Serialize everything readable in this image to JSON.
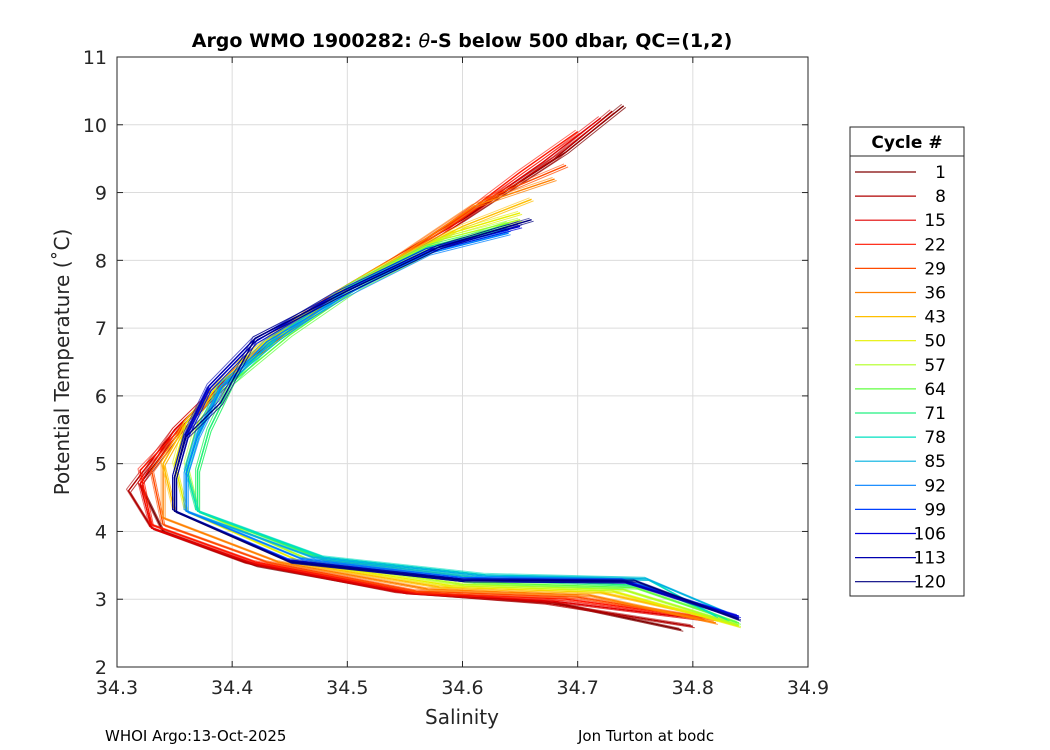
{
  "chart_data": {
    "type": "line",
    "title": "Argo WMO 1900282: θ-S below 500 dbar,  QC=(1,2)",
    "title_prefix": "Argo WMO 1900282: ",
    "title_theta": "θ",
    "title_suffix": "-S below 500 dbar,  QC=(1,2)",
    "xlabel": "Salinity",
    "ylabel": "Potential Temperature (˚C)",
    "xlim": [
      34.3,
      34.9
    ],
    "ylim": [
      2,
      11
    ],
    "x_ticks": [
      "34.3",
      "34.4",
      "34.5",
      "34.6",
      "34.7",
      "34.8",
      "34.9"
    ],
    "y_ticks": [
      "2",
      "3",
      "4",
      "5",
      "6",
      "7",
      "8",
      "9",
      "10",
      "11"
    ],
    "grid": true,
    "legend": {
      "title": "Cycle #",
      "placement": "right-outside",
      "entries": [
        {
          "label": "1",
          "color": "#800000"
        },
        {
          "label": "8",
          "color": "#b00000"
        },
        {
          "label": "15",
          "color": "#e00000"
        },
        {
          "label": "22",
          "color": "#ff1500"
        },
        {
          "label": "29",
          "color": "#ff4a00"
        },
        {
          "label": "36",
          "color": "#ff8000"
        },
        {
          "label": "43",
          "color": "#ffbf00"
        },
        {
          "label": "50",
          "color": "#e6f000"
        },
        {
          "label": "57",
          "color": "#b0ff20"
        },
        {
          "label": "64",
          "color": "#60ff40"
        },
        {
          "label": "71",
          "color": "#20f080"
        },
        {
          "label": "78",
          "color": "#00e0c0"
        },
        {
          "label": "85",
          "color": "#00b0e0"
        },
        {
          "label": "92",
          "color": "#0080ff"
        },
        {
          "label": "99",
          "color": "#0040ff"
        },
        {
          "label": "106",
          "color": "#0000e0"
        },
        {
          "label": "113",
          "color": "#0000b0"
        },
        {
          "label": "120",
          "color": "#000080"
        }
      ]
    },
    "series": [
      {
        "color": "#800000",
        "points": [
          [
            34.74,
            10.28
          ],
          [
            34.69,
            9.6
          ],
          [
            34.6,
            8.6
          ],
          [
            34.5,
            7.6
          ],
          [
            34.42,
            6.6
          ],
          [
            34.36,
            5.6
          ],
          [
            34.32,
            4.7
          ],
          [
            34.34,
            4.0
          ],
          [
            34.42,
            3.5
          ],
          [
            34.55,
            3.1
          ],
          [
            34.68,
            2.95
          ],
          [
            34.79,
            2.55
          ]
        ]
      },
      {
        "color": "#b00000",
        "points": [
          [
            34.73,
            10.2
          ],
          [
            34.68,
            9.5
          ],
          [
            34.59,
            8.5
          ],
          [
            34.49,
            7.5
          ],
          [
            34.41,
            6.5
          ],
          [
            34.35,
            5.5
          ],
          [
            34.31,
            4.6
          ],
          [
            34.33,
            4.05
          ],
          [
            34.41,
            3.55
          ],
          [
            34.54,
            3.12
          ],
          [
            34.67,
            2.95
          ],
          [
            34.8,
            2.6
          ]
        ]
      },
      {
        "color": "#e00000",
        "points": [
          [
            34.72,
            10.1
          ],
          [
            34.67,
            9.45
          ],
          [
            34.59,
            8.5
          ],
          [
            34.49,
            7.5
          ],
          [
            34.41,
            6.5
          ],
          [
            34.35,
            5.5
          ],
          [
            34.32,
            4.7
          ],
          [
            34.33,
            4.05
          ],
          [
            34.42,
            3.52
          ],
          [
            34.55,
            3.1
          ],
          [
            34.68,
            2.97
          ],
          [
            34.81,
            2.7
          ]
        ]
      },
      {
        "color": "#ff1500",
        "points": [
          [
            34.7,
            9.9
          ],
          [
            34.65,
            9.3
          ],
          [
            34.58,
            8.4
          ],
          [
            34.49,
            7.5
          ],
          [
            34.41,
            6.5
          ],
          [
            34.36,
            5.6
          ],
          [
            34.32,
            4.9
          ],
          [
            34.33,
            4.1
          ],
          [
            34.42,
            3.55
          ],
          [
            34.56,
            3.1
          ],
          [
            34.69,
            3.0
          ],
          [
            34.8,
            2.75
          ]
        ]
      },
      {
        "color": "#ff4a00",
        "points": [
          [
            34.69,
            9.4
          ],
          [
            34.62,
            8.9
          ],
          [
            34.55,
            8.1
          ],
          [
            34.48,
            7.4
          ],
          [
            34.41,
            6.5
          ],
          [
            34.36,
            5.6
          ],
          [
            34.33,
            4.9
          ],
          [
            34.34,
            4.1
          ],
          [
            34.43,
            3.55
          ],
          [
            34.56,
            3.12
          ],
          [
            34.7,
            3.03
          ],
          [
            34.82,
            2.7
          ]
        ]
      },
      {
        "color": "#ff8000",
        "points": [
          [
            34.68,
            9.2
          ],
          [
            34.61,
            8.8
          ],
          [
            34.54,
            8.0
          ],
          [
            34.47,
            7.3
          ],
          [
            34.41,
            6.5
          ],
          [
            34.36,
            5.6
          ],
          [
            34.34,
            5.0
          ],
          [
            34.34,
            4.2
          ],
          [
            34.44,
            3.55
          ],
          [
            34.57,
            3.15
          ],
          [
            34.71,
            3.06
          ],
          [
            34.82,
            2.65
          ]
        ]
      },
      {
        "color": "#ffbf00",
        "points": [
          [
            34.66,
            8.9
          ],
          [
            34.6,
            8.5
          ],
          [
            34.53,
            7.9
          ],
          [
            34.46,
            7.2
          ],
          [
            34.4,
            6.4
          ],
          [
            34.36,
            5.6
          ],
          [
            34.34,
            5.0
          ],
          [
            34.35,
            4.3
          ],
          [
            34.45,
            3.55
          ],
          [
            34.58,
            3.18
          ],
          [
            34.72,
            3.1
          ],
          [
            34.83,
            2.68
          ]
        ]
      },
      {
        "color": "#e6f000",
        "points": [
          [
            34.65,
            8.7
          ],
          [
            34.59,
            8.4
          ],
          [
            34.52,
            7.8
          ],
          [
            34.45,
            7.1
          ],
          [
            34.4,
            6.4
          ],
          [
            34.36,
            5.6
          ],
          [
            34.35,
            5.0
          ],
          [
            34.36,
            4.3
          ],
          [
            34.46,
            3.55
          ],
          [
            34.59,
            3.2
          ],
          [
            34.73,
            3.12
          ],
          [
            34.84,
            2.6
          ]
        ]
      },
      {
        "color": "#b0ff20",
        "points": [
          [
            34.65,
            8.6
          ],
          [
            34.58,
            8.3
          ],
          [
            34.51,
            7.7
          ],
          [
            34.45,
            7.0
          ],
          [
            34.4,
            6.3
          ],
          [
            34.37,
            5.6
          ],
          [
            34.36,
            5.0
          ],
          [
            34.37,
            4.3
          ],
          [
            34.47,
            3.56
          ],
          [
            34.6,
            3.22
          ],
          [
            34.74,
            3.14
          ],
          [
            34.84,
            2.62
          ]
        ]
      },
      {
        "color": "#60ff40",
        "points": [
          [
            34.64,
            8.55
          ],
          [
            34.58,
            8.2
          ],
          [
            34.51,
            7.6
          ],
          [
            34.45,
            6.9
          ],
          [
            34.4,
            6.2
          ],
          [
            34.38,
            5.5
          ],
          [
            34.37,
            4.9
          ],
          [
            34.37,
            4.3
          ],
          [
            34.48,
            3.58
          ],
          [
            34.61,
            3.25
          ],
          [
            34.75,
            3.17
          ],
          [
            34.84,
            2.65
          ]
        ]
      },
      {
        "color": "#20f080",
        "points": [
          [
            34.64,
            8.5
          ],
          [
            34.57,
            8.2
          ],
          [
            34.5,
            7.6
          ],
          [
            34.44,
            6.9
          ],
          [
            34.4,
            6.2
          ],
          [
            34.38,
            5.5
          ],
          [
            34.37,
            4.9
          ],
          [
            34.37,
            4.3
          ],
          [
            34.48,
            3.6
          ],
          [
            34.62,
            3.3
          ],
          [
            34.76,
            3.2
          ],
          [
            34.83,
            2.7
          ]
        ]
      },
      {
        "color": "#00e0c0",
        "points": [
          [
            34.64,
            8.45
          ],
          [
            34.57,
            8.15
          ],
          [
            34.5,
            7.55
          ],
          [
            34.44,
            6.85
          ],
          [
            34.39,
            6.15
          ],
          [
            34.37,
            5.45
          ],
          [
            34.36,
            4.9
          ],
          [
            34.37,
            4.3
          ],
          [
            34.48,
            3.62
          ],
          [
            34.62,
            3.36
          ],
          [
            34.76,
            3.3
          ],
          [
            34.82,
            2.75
          ]
        ]
      },
      {
        "color": "#00b0e0",
        "points": [
          [
            34.64,
            8.45
          ],
          [
            34.57,
            8.15
          ],
          [
            34.5,
            7.55
          ],
          [
            34.44,
            6.85
          ],
          [
            34.39,
            6.15
          ],
          [
            34.37,
            5.45
          ],
          [
            34.36,
            4.85
          ],
          [
            34.36,
            4.3
          ],
          [
            34.47,
            3.62
          ],
          [
            34.62,
            3.34
          ],
          [
            34.76,
            3.3
          ],
          [
            34.83,
            2.8
          ]
        ]
      },
      {
        "color": "#0080ff",
        "points": [
          [
            34.64,
            8.4
          ],
          [
            34.57,
            8.1
          ],
          [
            34.5,
            7.5
          ],
          [
            34.43,
            6.8
          ],
          [
            34.39,
            6.1
          ],
          [
            34.37,
            5.4
          ],
          [
            34.36,
            4.85
          ],
          [
            34.36,
            4.3
          ],
          [
            34.46,
            3.6
          ],
          [
            34.6,
            3.32
          ],
          [
            34.74,
            3.28
          ],
          [
            34.83,
            2.78
          ]
        ]
      },
      {
        "color": "#0040ff",
        "points": [
          [
            34.64,
            8.45
          ],
          [
            34.57,
            8.15
          ],
          [
            34.49,
            7.5
          ],
          [
            34.42,
            6.8
          ],
          [
            34.38,
            6.1
          ],
          [
            34.36,
            5.4
          ],
          [
            34.35,
            4.8
          ],
          [
            34.35,
            4.3
          ],
          [
            34.45,
            3.58
          ],
          [
            34.6,
            3.3
          ],
          [
            34.74,
            3.28
          ],
          [
            34.83,
            2.8
          ]
        ]
      },
      {
        "color": "#0000e0",
        "points": [
          [
            34.65,
            8.5
          ],
          [
            34.57,
            8.15
          ],
          [
            34.49,
            7.5
          ],
          [
            34.42,
            6.8
          ],
          [
            34.38,
            6.1
          ],
          [
            34.36,
            5.4
          ],
          [
            34.35,
            4.8
          ],
          [
            34.35,
            4.3
          ],
          [
            34.45,
            3.56
          ],
          [
            34.6,
            3.28
          ],
          [
            34.74,
            3.26
          ],
          [
            34.84,
            2.75
          ]
        ]
      },
      {
        "color": "#0000b0",
        "points": [
          [
            34.65,
            8.55
          ],
          [
            34.58,
            8.2
          ],
          [
            34.5,
            7.55
          ],
          [
            34.42,
            6.85
          ],
          [
            34.38,
            6.15
          ],
          [
            34.36,
            5.45
          ],
          [
            34.35,
            4.8
          ],
          [
            34.35,
            4.3
          ],
          [
            34.45,
            3.56
          ],
          [
            34.6,
            3.28
          ],
          [
            34.74,
            3.26
          ],
          [
            34.84,
            2.72
          ]
        ]
      },
      {
        "color": "#000080",
        "points": [
          [
            34.66,
            8.6
          ],
          [
            34.58,
            8.2
          ],
          [
            34.5,
            7.55
          ],
          [
            34.42,
            6.85
          ],
          [
            34.39,
            5.9
          ],
          [
            34.36,
            5.4
          ],
          [
            34.35,
            4.8
          ],
          [
            34.35,
            4.3
          ],
          [
            34.45,
            3.55
          ],
          [
            34.6,
            3.28
          ],
          [
            34.75,
            3.27
          ],
          [
            34.84,
            2.7
          ]
        ]
      }
    ]
  },
  "footer": {
    "left": "WHOI Argo:13-Oct-2025",
    "right": "Jon Turton at bodc"
  }
}
